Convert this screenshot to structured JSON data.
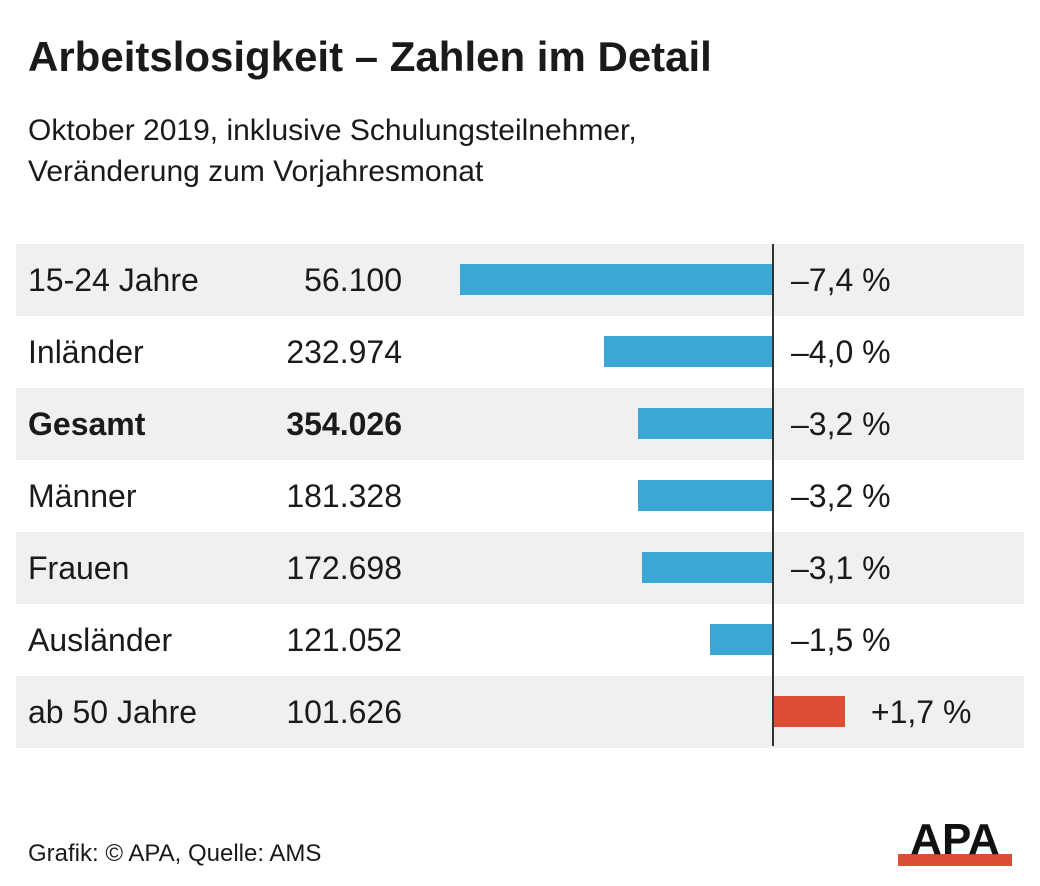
{
  "title": "Arbeitslosigkeit – Zahlen im Detail",
  "subtitle_line1": "Oktober 2019, inklusive Schulungsteilnehmer,",
  "subtitle_line2": "Veränderung zum Vorjahresmonat",
  "footer": "Grafik: © APA, Quelle: AMS",
  "logo_text": "APA",
  "colors": {
    "negative": "#3aa7d4",
    "positive": "#dc4d36",
    "shade": "#f0f0f0",
    "logo": "#dc4d36"
  },
  "chart_data": {
    "type": "bar",
    "orientation": "horizontal",
    "title": "Arbeitslosigkeit – Zahlen im Detail",
    "categories": [
      "15-24 Jahre",
      "Inländer",
      "Gesamt",
      "Männer",
      "Frauen",
      "Ausländer",
      "ab 50 Jahre"
    ],
    "absolute_labels": [
      "56.100",
      "232.974",
      "354.026",
      "181.328",
      "172.698",
      "121.052",
      "101.626"
    ],
    "values": [
      -7.4,
      -4.0,
      -3.2,
      -3.2,
      -3.1,
      -1.5,
      1.7
    ],
    "value_labels": [
      "–7,4 %",
      "–4,0 %",
      "–3,2 %",
      "–3,2 %",
      "–3,1 %",
      "–1,5 %",
      "+1,7 %"
    ],
    "highlight": "Gesamt",
    "unit": "%",
    "grid": false
  }
}
